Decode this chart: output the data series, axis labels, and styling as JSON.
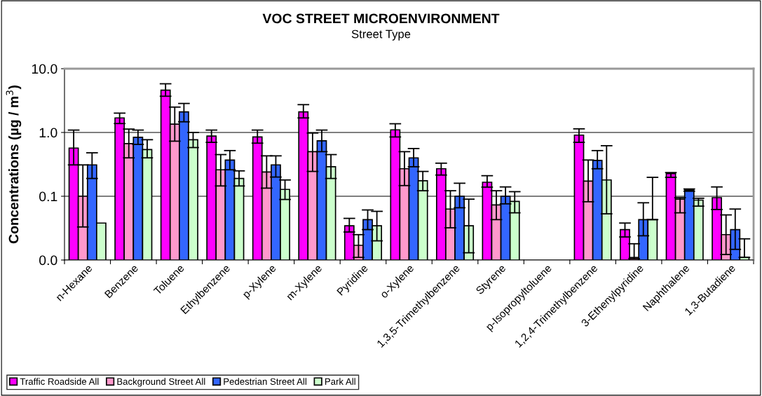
{
  "chart_data": {
    "type": "bar",
    "title": "VOC STREET MICROENVIRONMENT",
    "subtitle": "Street Type",
    "ylabel": "Concentrations (µg / m$^{3}$)",
    "categories": [
      "n-Hexane",
      "Benzene",
      "Toluene",
      "Ethylbenzene",
      "p-Xylene",
      "m-Xylene",
      "Pyridine",
      "o-Xylene",
      "1,3,5-Trimethylbenzene",
      "Styrene",
      "p-Isopropyltoluene",
      "1,2,4-Trimethylbenzene",
      "3-Ethenylpyridine",
      "Naphthalene",
      "1,3-Butadiene"
    ],
    "series": [
      {
        "name": "Traffic Roadside All",
        "color": "#ff00ff",
        "values": [
          0.57,
          1.69,
          4.6,
          0.88,
          0.85,
          2.1,
          0.0345,
          1.1,
          0.27,
          0.166,
          null,
          0.91,
          0.03,
          0.226,
          0.095
        ],
        "errors": [
          [
            0.31,
            1.09
          ],
          [
            1.38,
            2.01
          ],
          [
            3.7,
            5.8
          ],
          [
            0.7,
            1.09
          ],
          [
            0.68,
            1.09
          ],
          [
            1.69,
            2.73
          ],
          [
            0.0275,
            0.045
          ],
          [
            0.85,
            1.37
          ],
          [
            0.215,
            0.33
          ],
          [
            0.139,
            0.21
          ],
          null,
          [
            0.7,
            1.14
          ],
          [
            0.023,
            0.038
          ],
          [
            0.198,
            0.235
          ],
          [
            0.062,
            0.14
          ]
        ]
      },
      {
        "name": "Background Street All",
        "color": "#ff99cc",
        "values": [
          0.1,
          0.67,
          1.35,
          0.26,
          0.24,
          0.5,
          0.017,
          0.27,
          0.063,
          0.073,
          null,
          0.173,
          0.011,
          0.09,
          0.025
        ],
        "errors": [
          [
            0.033,
            0.31
          ],
          [
            0.4,
            1.13
          ],
          [
            0.73,
            2.5
          ],
          [
            0.145,
            0.45
          ],
          [
            0.134,
            0.43
          ],
          [
            0.245,
            0.98
          ],
          [
            0.011,
            0.025
          ],
          [
            0.147,
            0.5
          ],
          [
            0.032,
            0.122
          ],
          [
            0.043,
            0.122
          ],
          null,
          [
            0.082,
            0.37
          ],
          [
            0.0105,
            0.018
          ],
          [
            0.055,
            0.095
          ],
          [
            0.0122,
            0.051
          ]
        ]
      },
      {
        "name": "Pedestrian Street All",
        "color": "#3366ff",
        "values": [
          0.31,
          0.84,
          2.1,
          0.37,
          0.31,
          0.74,
          0.043,
          0.4,
          0.1,
          0.1,
          null,
          0.365,
          0.043,
          0.125,
          0.03
        ],
        "errors": [
          [
            0.19,
            0.48
          ],
          [
            0.65,
            1.09
          ],
          [
            1.47,
            2.85
          ],
          [
            0.26,
            0.52
          ],
          [
            0.2,
            0.43
          ],
          [
            0.5,
            1.09
          ],
          [
            0.03,
            0.061
          ],
          [
            0.29,
            0.56
          ],
          [
            0.066,
            0.16
          ],
          [
            0.076,
            0.14
          ],
          null,
          [
            0.27,
            0.52
          ],
          [
            0.024,
            0.079
          ],
          [
            0.12,
            0.13
          ],
          [
            0.0147,
            0.063
          ]
        ]
      },
      {
        "name": "Park All",
        "color": "#ccffcc",
        "values": [
          0.038,
          0.54,
          0.77,
          0.19,
          0.128,
          0.29,
          0.0345,
          0.175,
          0.0345,
          0.083,
          null,
          0.18,
          0.043,
          0.087,
          0.011
        ],
        "errors": [
          null,
          [
            0.4,
            0.77
          ],
          [
            0.58,
            1.0
          ],
          [
            0.145,
            0.25
          ],
          [
            0.089,
            0.18
          ],
          [
            0.19,
            0.45
          ],
          [
            0.02,
            0.058
          ],
          [
            0.122,
            0.245
          ],
          [
            0.013,
            0.09
          ],
          [
            0.055,
            0.118
          ],
          null,
          [
            0.053,
            0.62
          ],
          [
            0.043,
            0.198
          ],
          [
            0.07,
            0.093
          ],
          [
            0.011,
            0.0215
          ]
        ]
      }
    ],
    "log": true,
    "ylim": [
      0.01,
      10
    ],
    "yticks": [
      {
        "value": 0.01,
        "label": "0.0"
      },
      {
        "value": 0.1,
        "label": "0.1"
      },
      {
        "value": 1,
        "label": "1.0"
      },
      {
        "value": 10,
        "label": "10.0"
      }
    ],
    "grid": "y",
    "legend": "bottom left"
  }
}
